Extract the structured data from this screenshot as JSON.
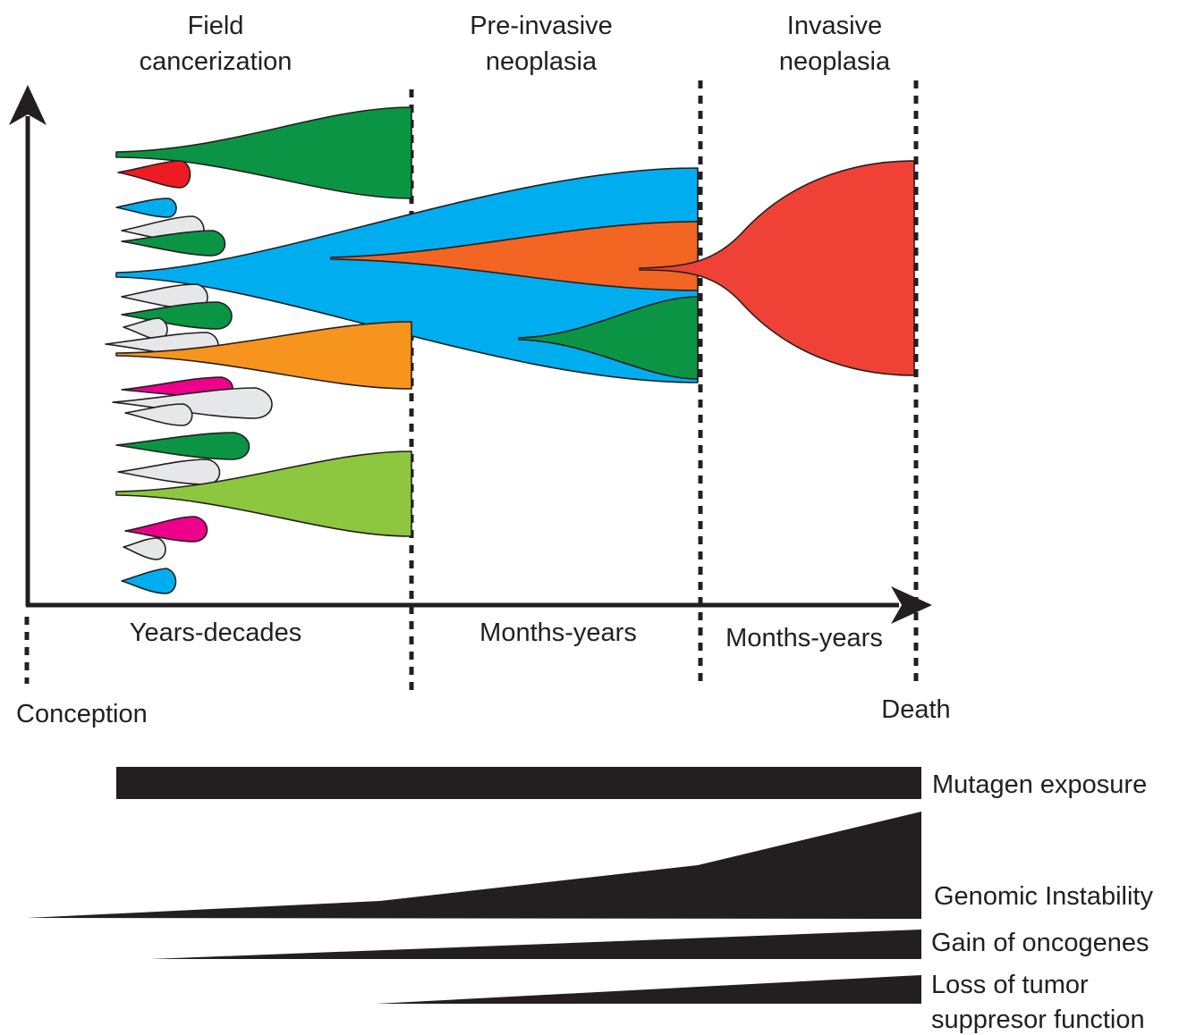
{
  "phases": [
    {
      "lines": [
        "Field",
        "cancerization"
      ],
      "duration": "Years-decades"
    },
    {
      "lines": [
        "Pre-invasive",
        "neoplasia"
      ],
      "duration": "Months-years"
    },
    {
      "lines": [
        "Invasive",
        "neoplasia"
      ],
      "duration": "Months-years"
    }
  ],
  "timeline": {
    "start": "Conception",
    "end": "Death"
  },
  "factors": [
    {
      "label_lines": [
        "Mutagen exposure"
      ],
      "trend": "constant"
    },
    {
      "label_lines": [
        "Genomic Instability"
      ],
      "trend": "increasing-accelerating"
    },
    {
      "label_lines": [
        "Gain of oncogenes"
      ],
      "trend": "increasing"
    },
    {
      "label_lines": [
        "Loss of tumor",
        "suppresor function"
      ],
      "trend": "increasing"
    }
  ],
  "colors": {
    "ink": "#231f20",
    "dark_green": "#0b9444",
    "red": "#ed1c24",
    "blue": "#00aeef",
    "grey": "#e6e7e8",
    "orange_red": "#f26522",
    "orange": "#f7941d",
    "magenta": "#ec008c",
    "light_green": "#8dc63f",
    "tumor_red": "#ef4136"
  }
}
